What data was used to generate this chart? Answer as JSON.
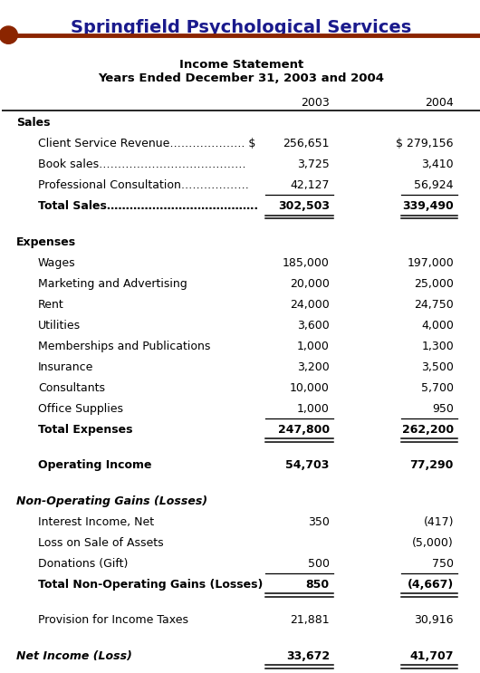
{
  "company": "Springfield Psychological Services",
  "subtitle1": "Income Statement",
  "subtitle2": "Years Ended December 31, 2003 and 2004",
  "col2003": "2003",
  "col2004": "2004",
  "header_color": "#1a1a8c",
  "bar_color": "#8B2500",
  "bg_color": "#ffffff",
  "rows": [
    {
      "label": "Sales",
      "val2003": "",
      "val2004": "",
      "style": "section_header",
      "indent": 0
    },
    {
      "label": "Client Service Revenue……………….. $",
      "val2003": "256,651",
      "val2004": "$ 279,156",
      "style": "normal",
      "indent": 1
    },
    {
      "label": "Book sales…………………………………",
      "val2003": "3,725",
      "val2004": "3,410",
      "style": "normal",
      "indent": 1
    },
    {
      "label": "Professional Consultation………………",
      "val2003": "42,127",
      "val2004": "56,924",
      "style": "normal_underline",
      "indent": 1
    },
    {
      "label": "Total Sales………………………………….",
      "val2003": "302,503",
      "val2004": "339,490",
      "style": "bold_double_underline",
      "indent": 1
    },
    {
      "label": "",
      "val2003": "",
      "val2004": "",
      "style": "spacer",
      "indent": 0
    },
    {
      "label": "Expenses",
      "val2003": "",
      "val2004": "",
      "style": "section_header",
      "indent": 0
    },
    {
      "label": "Wages",
      "val2003": "185,000",
      "val2004": "197,000",
      "style": "normal",
      "indent": 1
    },
    {
      "label": "Marketing and Advertising",
      "val2003": "20,000",
      "val2004": "25,000",
      "style": "normal",
      "indent": 1
    },
    {
      "label": "Rent",
      "val2003": "24,000",
      "val2004": "24,750",
      "style": "normal",
      "indent": 1
    },
    {
      "label": "Utilities",
      "val2003": "3,600",
      "val2004": "4,000",
      "style": "normal",
      "indent": 1
    },
    {
      "label": "Memberships and Publications",
      "val2003": "1,000",
      "val2004": "1,300",
      "style": "normal",
      "indent": 1
    },
    {
      "label": "Insurance",
      "val2003": "3,200",
      "val2004": "3,500",
      "style": "normal",
      "indent": 1
    },
    {
      "label": "Consultants",
      "val2003": "10,000",
      "val2004": "5,700",
      "style": "normal",
      "indent": 1
    },
    {
      "label": "Office Supplies",
      "val2003": "1,000",
      "val2004": "950",
      "style": "normal_underline",
      "indent": 1
    },
    {
      "label": "Total Expenses",
      "val2003": "247,800",
      "val2004": "262,200",
      "style": "bold_double_underline",
      "indent": 1
    },
    {
      "label": "",
      "val2003": "",
      "val2004": "",
      "style": "spacer",
      "indent": 0
    },
    {
      "label": "Operating Income",
      "val2003": "54,703",
      "val2004": "77,290",
      "style": "bold",
      "indent": 1
    },
    {
      "label": "",
      "val2003": "",
      "val2004": "",
      "style": "spacer",
      "indent": 0
    },
    {
      "label": "Non-Operating Gains (Losses)",
      "val2003": "",
      "val2004": "",
      "style": "section_header_italic",
      "indent": 0
    },
    {
      "label": "Interest Income, Net",
      "val2003": "350",
      "val2004": "(417)",
      "style": "normal",
      "indent": 1
    },
    {
      "label": "Loss on Sale of Assets",
      "val2003": "",
      "val2004": "(5,000)",
      "style": "normal",
      "indent": 1
    },
    {
      "label": "Donations (Gift)",
      "val2003": "500",
      "val2004": "750",
      "style": "normal_underline",
      "indent": 1
    },
    {
      "label": "Total Non-Operating Gains (Losses)",
      "val2003": "850",
      "val2004": "(4,667)",
      "style": "bold_double_underline",
      "indent": 1
    },
    {
      "label": "",
      "val2003": "",
      "val2004": "",
      "style": "spacer",
      "indent": 0
    },
    {
      "label": "Provision for Income Taxes",
      "val2003": "21,881",
      "val2004": "30,916",
      "style": "normal",
      "indent": 1
    },
    {
      "label": "",
      "val2003": "",
      "val2004": "",
      "style": "spacer",
      "indent": 0
    },
    {
      "label": "Net Income (Loss)",
      "val2003": "33,672",
      "val2004": "41,707",
      "style": "bold_italic_double_underline",
      "indent": 0
    }
  ]
}
